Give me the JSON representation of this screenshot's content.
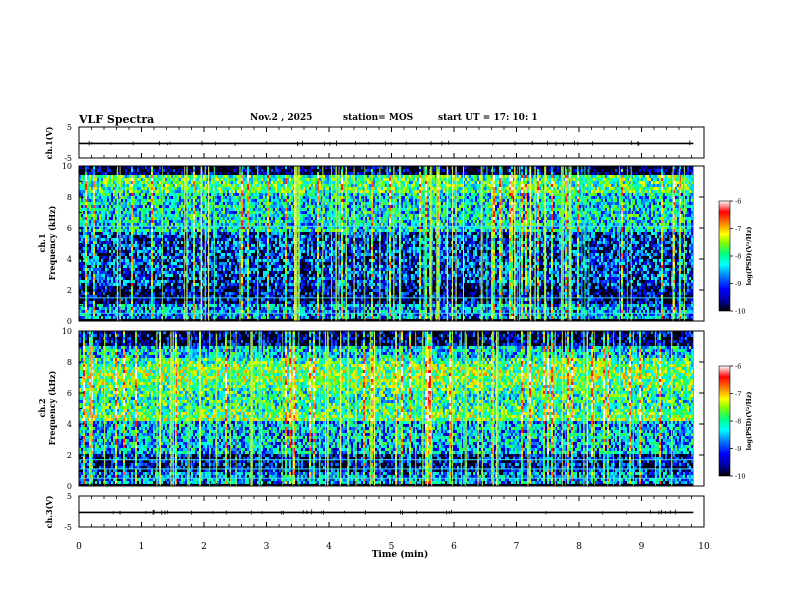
{
  "header": {
    "title": "VLF Spectra",
    "date": "Nov.2 , 2025",
    "station": "station= MOS",
    "start": "start UT = 17: 10: 1"
  },
  "chart_data": [
    {
      "type": "line",
      "panel": "ch1-waveform",
      "ylabel": "ch.1(V)",
      "ylim": [
        -5,
        5
      ],
      "yticks": [
        "5",
        "-5"
      ],
      "x": [
        0,
        9.83
      ],
      "series": [
        {
          "values": [
            -0.3,
            -0.3
          ]
        }
      ]
    },
    {
      "type": "heatmap",
      "panel": "ch1-spectrogram",
      "ylabel": "ch.1 Frequency (kHz)",
      "ylim": [
        0,
        10
      ],
      "yticks": [
        "0",
        "2",
        "4",
        "6",
        "8",
        "10"
      ],
      "colorbar": {
        "label": "log(PSD)(V²/Hz)",
        "range": [
          -10,
          -6
        ],
        "ticks": [
          "-6",
          "-7",
          "-8",
          "-9",
          "-10"
        ]
      },
      "bright_lines_khz": [
        0.5,
        1.5,
        6.1
      ],
      "time_min": [
        0,
        9.83
      ]
    },
    {
      "type": "heatmap",
      "panel": "ch2-spectrogram",
      "ylabel": "ch.2 Frequency (kHz)",
      "ylim": [
        0,
        10
      ],
      "yticks": [
        "0",
        "2",
        "4",
        "6",
        "8",
        "10"
      ],
      "colorbar": {
        "label": "log(PSD)(V²/Hz)",
        "range": [
          -10,
          -6
        ],
        "ticks": [
          "-6",
          "-7",
          "-8",
          "-9",
          "-10"
        ]
      },
      "bright_lines_khz": [
        0.5,
        1.1,
        1.7
      ],
      "time_min": [
        0,
        9.83
      ]
    },
    {
      "type": "line",
      "panel": "ch3-waveform",
      "ylabel": "ch.3(V)",
      "ylim": [
        -5,
        5
      ],
      "yticks": [
        "5",
        "-5"
      ],
      "x": [
        0,
        9.83
      ],
      "series": [
        {
          "values": [
            -0.3,
            -0.3
          ]
        }
      ]
    }
  ],
  "xaxis": {
    "label": "Time (min)",
    "ticks": [
      "0",
      "1",
      "2",
      "3",
      "4",
      "5",
      "6",
      "7",
      "8",
      "9",
      "10"
    ],
    "range": [
      0,
      10
    ]
  },
  "colors": {
    "colormap": [
      "#000000",
      "#000080",
      "#0000ff",
      "#0080ff",
      "#00ffff",
      "#00ff80",
      "#80ff00",
      "#ffff00",
      "#ff8000",
      "#ff0000",
      "#ffffff"
    ]
  }
}
